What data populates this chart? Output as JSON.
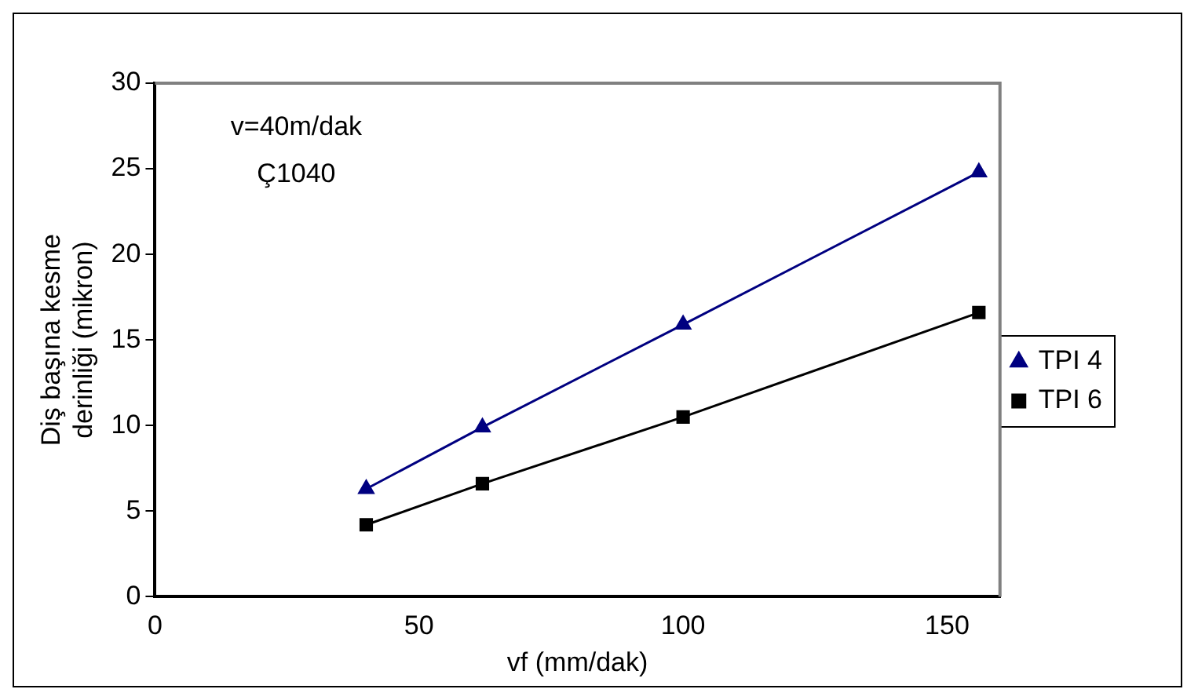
{
  "chart_data": {
    "type": "line",
    "xlabel": "vf (mm/dak)",
    "ylabel": "Diş başına kesme derinliği (mikron)",
    "x": [
      40,
      62,
      100,
      156
    ],
    "series": [
      {
        "name": "TPI 4",
        "color": "#000080",
        "marker": "triangle",
        "values": [
          6.3,
          9.9,
          15.9,
          24.8
        ]
      },
      {
        "name": "TPI 6",
        "color": "#000000",
        "marker": "square",
        "values": [
          4.2,
          6.6,
          10.5,
          16.6
        ]
      }
    ],
    "xlim": [
      0,
      160
    ],
    "xticks": [
      0,
      50,
      100,
      150
    ],
    "ylim": [
      0,
      30
    ],
    "yticks": [
      0,
      5,
      10,
      15,
      20,
      25,
      30
    ],
    "annotations": [
      "v=40m/dak",
      "Ç1040"
    ],
    "legend": "right",
    "grid": false,
    "line_style": "solid"
  }
}
